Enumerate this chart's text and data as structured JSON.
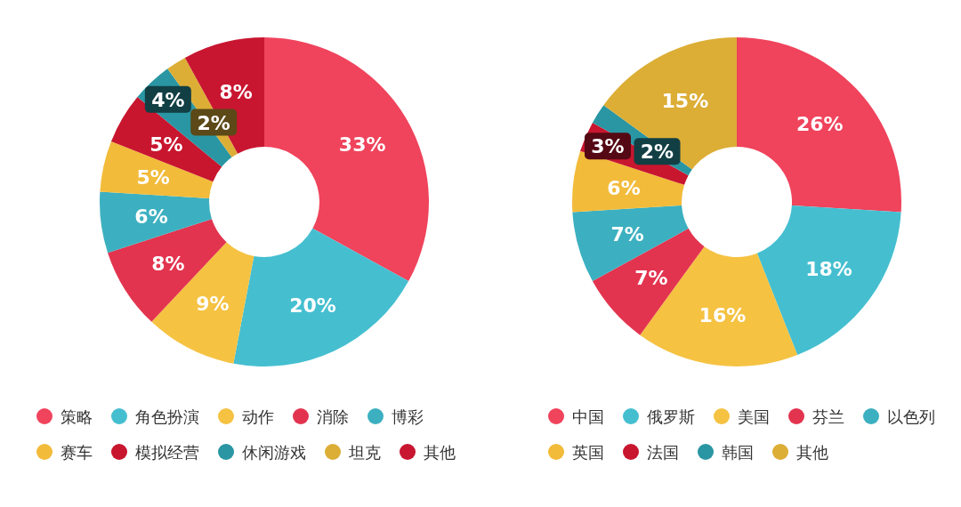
{
  "chart_data": [
    {
      "type": "donut",
      "categories": [
        "策略",
        "角色扮演",
        "动作",
        "消除",
        "博彩",
        "赛车",
        "模拟经营",
        "休闲游戏",
        "坦克",
        "其他"
      ],
      "values": [
        33,
        20,
        9,
        8,
        6,
        5,
        5,
        4,
        2,
        8
      ],
      "value_labels": [
        "33%",
        "20%",
        "9%",
        "8%",
        "6%",
        "5%",
        "5%",
        "4%",
        "2%",
        "8%"
      ],
      "colors": [
        "#f0435c",
        "#45bfd0",
        "#f5c242",
        "#e3344f",
        "#3cb0c0",
        "#f2bb3a",
        "#c8162f",
        "#2a96a3",
        "#dcae36",
        "#c81631"
      ],
      "legend": "bottom"
    },
    {
      "type": "donut",
      "categories": [
        "中国",
        "俄罗斯",
        "美国",
        "芬兰",
        "以色列",
        "英国",
        "法国",
        "韩国",
        "其他"
      ],
      "values": [
        26,
        18,
        16,
        7,
        7,
        6,
        3,
        2,
        15
      ],
      "value_labels": [
        "26%",
        "18%",
        "16%",
        "7%",
        "7%",
        "6%",
        "3%",
        "2%",
        "15%"
      ],
      "colors": [
        "#f0435c",
        "#45bfd0",
        "#f5c242",
        "#e3344f",
        "#3cb0c0",
        "#f2bb3a",
        "#c8162f",
        "#2a96a3",
        "#dcae36"
      ],
      "legend": "bottom"
    }
  ]
}
